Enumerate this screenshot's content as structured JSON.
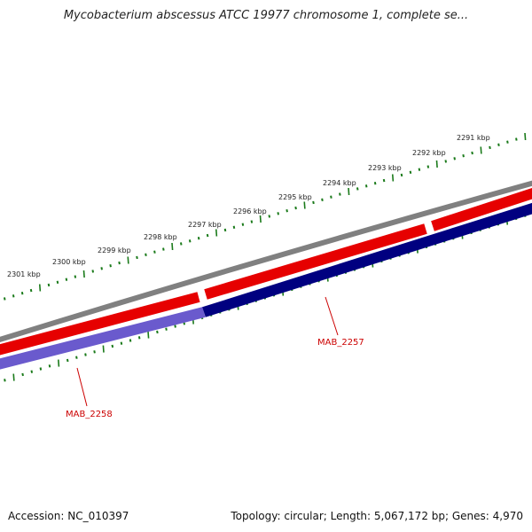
{
  "title": "Mycobacterium abscessus ATCC 19977 chromosome 1, complete se...",
  "footer": {
    "accession": "Accession: NC_010397",
    "summary": "Topology: circular; Length: 5,067,172 bp; Genes: 4,970"
  },
  "colors": {
    "backbone": "#808080",
    "forward_gene": "#e60000",
    "reverse_gene": "#000080",
    "reverse_gene_alt": "#6a5acd",
    "gc_ticks": "#1a7a1a",
    "label": "#cc0000"
  },
  "scale_labels": [
    "2291 kbp",
    "2292 kbp",
    "2293 kbp",
    "2294 kbp",
    "2295 kbp",
    "2296 kbp",
    "2297 kbp",
    "2298 kbp",
    "2299 kbp",
    "2300 kbp",
    "2301 kbp"
  ],
  "genes": [
    {
      "label": "MAB_2257"
    },
    {
      "label": "MAB_2258"
    }
  ]
}
